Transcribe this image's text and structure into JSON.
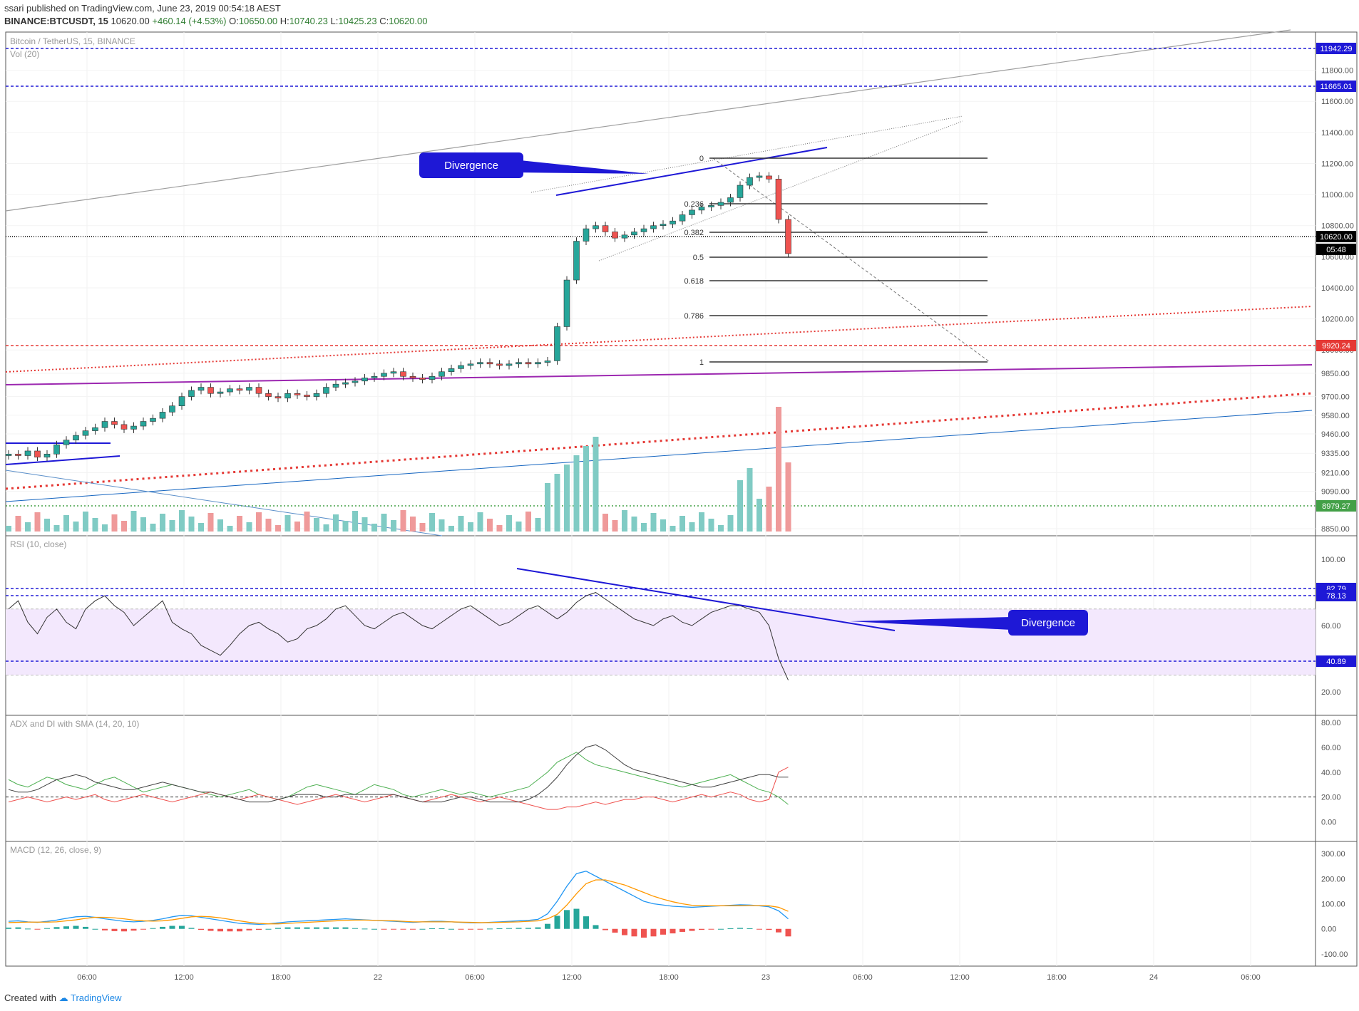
{
  "header": {
    "publisher": "ssari published on TradingView.com, June 23, 2019 00:54:18 AEST",
    "symbol": "BINANCE:BTCUSDT, 15",
    "last": "10620.00",
    "change": "+460.14 (+4.53%)",
    "o_label": "O:",
    "o": "10650.00",
    "h_label": "H:",
    "h": "10740.23",
    "l_label": "L:",
    "l": "10425.23",
    "c_label": "C:",
    "c": "10620.00"
  },
  "footer": {
    "created": "Created with",
    "brand": "TradingView"
  },
  "colors": {
    "up": "#26a69a",
    "down": "#ef5350",
    "vol_up": "#80cbc4",
    "vol_down": "#ef9a9a",
    "rsi_band": "#f3e8fd",
    "purple": "#9c27b0",
    "blue": "#1e18d6"
  },
  "chart_data": [
    {
      "type": "candlestick",
      "title": "Bitcoin / TetherUS, 15, BINANCE",
      "legend": [
        "Vol (20)"
      ],
      "ylim": [
        8850,
        12000
      ],
      "y_ticks": [
        "11800.00",
        "11600.00",
        "11400.00",
        "11200.00",
        "11000.00",
        "10800.00",
        "10600.00",
        "10400.00",
        "10200.00",
        "10000.00",
        "9850.00",
        "9700.00",
        "9580.00",
        "9460.00",
        "9335.00",
        "9210.00",
        "9090.00",
        "8850.00"
      ],
      "x_ticks": [
        "06:00",
        "12:00",
        "18:00",
        "22",
        "06:00",
        "12:00",
        "18:00",
        "23",
        "06:00",
        "12:00",
        "18:00",
        "24",
        "06:00"
      ],
      "price_labels": [
        {
          "value": "11942.29",
          "color": "#1e18d6"
        },
        {
          "value": "11665.01",
          "color": "#1e18d6"
        },
        {
          "value": "10620.00",
          "color": "#000000"
        },
        {
          "value": "05:48",
          "color": "#000000"
        },
        {
          "value": "9920.24",
          "color": "#e53935"
        },
        {
          "value": "8979.27",
          "color": "#43a047"
        }
      ],
      "fib_levels": [
        {
          "label": "0",
          "value": 11160
        },
        {
          "label": "0.236",
          "value": 10840
        },
        {
          "label": "0.382",
          "value": 10640
        },
        {
          "label": "0.5",
          "value": 10480
        },
        {
          "label": "0.618",
          "value": 10320
        },
        {
          "label": "0.786",
          "value": 10090
        },
        {
          "label": "1",
          "value": 9820
        }
      ],
      "annotation": "Divergence",
      "close_path": [
        9330,
        9320,
        9350,
        9310,
        9330,
        9390,
        9420,
        9450,
        9480,
        9500,
        9540,
        9520,
        9490,
        9510,
        9540,
        9560,
        9600,
        9640,
        9700,
        9740,
        9760,
        9720,
        9730,
        9750,
        9740,
        9760,
        9720,
        9700,
        9690,
        9720,
        9710,
        9700,
        9720,
        9760,
        9780,
        9790,
        9800,
        9820,
        9830,
        9850,
        9860,
        9830,
        9820,
        9810,
        9830,
        9860,
        9880,
        9900,
        9910,
        9920,
        9910,
        9900,
        9910,
        9920,
        9910,
        9920,
        9930,
        10150,
        10450,
        10700,
        10780,
        10800,
        10760,
        10720,
        10740,
        10760,
        10780,
        10800,
        10810,
        10830,
        10870,
        10900,
        10920,
        10930,
        10950,
        10980,
        11060,
        11110,
        11120,
        11100,
        10840,
        10620
      ]
    },
    {
      "type": "line",
      "title": "RSI (10, close)",
      "ylim": [
        10,
        110
      ],
      "y_ticks": [
        "100.00",
        "80.00",
        "60.00",
        "40.00",
        "20.00"
      ],
      "price_labels": [
        {
          "value": "82.79",
          "color": "#1e18d6"
        },
        {
          "value": "78.13",
          "color": "#1e18d6"
        },
        {
          "value": "40.89",
          "color": "#1e18d6"
        }
      ],
      "band": [
        30,
        70
      ],
      "annotation": "Divergence",
      "values": [
        70,
        75,
        62,
        55,
        65,
        70,
        62,
        58,
        70,
        75,
        78,
        72,
        68,
        60,
        65,
        70,
        75,
        62,
        58,
        55,
        48,
        45,
        42,
        48,
        55,
        60,
        62,
        58,
        55,
        50,
        52,
        58,
        60,
        64,
        70,
        72,
        66,
        60,
        58,
        62,
        66,
        68,
        64,
        60,
        58,
        62,
        66,
        70,
        72,
        68,
        64,
        60,
        62,
        66,
        70,
        72,
        68,
        64,
        68,
        74,
        78,
        80,
        76,
        72,
        68,
        64,
        62,
        60,
        64,
        66,
        62,
        60,
        64,
        68,
        70,
        72,
        72,
        70,
        68,
        60,
        40,
        27
      ]
    },
    {
      "type": "line",
      "title": "ADX and DI with SMA (14, 20, 10)",
      "ylim": [
        -10,
        80
      ],
      "y_ticks": [
        "80.00",
        "60.00",
        "40.00",
        "20.00",
        "0.00"
      ],
      "series": [
        {
          "color": "#4caf50",
          "values": [
            34,
            30,
            28,
            32,
            36,
            34,
            30,
            28,
            26,
            30,
            34,
            36,
            32,
            28,
            24,
            26,
            28,
            30,
            28,
            26,
            24,
            22,
            20,
            22,
            24,
            26,
            22,
            20,
            18,
            20,
            24,
            28,
            30,
            28,
            26,
            24,
            22,
            26,
            30,
            28,
            26,
            22,
            20,
            22,
            24,
            26,
            24,
            22,
            24,
            22,
            20,
            22,
            24,
            26,
            28,
            34,
            40,
            48,
            52,
            56,
            50,
            46,
            44,
            42,
            40,
            38,
            36,
            34,
            32,
            30,
            28,
            30,
            32,
            34,
            36,
            38,
            34,
            30,
            26,
            24,
            20,
            14
          ]
        },
        {
          "color": "#ef5350",
          "values": [
            16,
            18,
            20,
            18,
            16,
            18,
            20,
            18,
            20,
            22,
            18,
            16,
            18,
            20,
            22,
            20,
            18,
            16,
            18,
            20,
            22,
            24,
            22,
            20,
            18,
            20,
            22,
            20,
            18,
            16,
            14,
            16,
            18,
            20,
            22,
            20,
            18,
            16,
            18,
            20,
            22,
            20,
            18,
            16,
            18,
            20,
            22,
            20,
            18,
            16,
            18,
            20,
            18,
            16,
            14,
            12,
            10,
            10,
            12,
            12,
            14,
            16,
            14,
            16,
            18,
            18,
            20,
            20,
            18,
            16,
            18,
            20,
            22,
            20,
            22,
            24,
            22,
            18,
            16,
            18,
            40,
            44
          ]
        },
        {
          "color": "#424242",
          "values": [
            26,
            24,
            24,
            26,
            30,
            34,
            36,
            38,
            36,
            32,
            30,
            28,
            26,
            26,
            28,
            30,
            32,
            30,
            28,
            26,
            24,
            24,
            22,
            20,
            18,
            16,
            16,
            16,
            18,
            20,
            22,
            22,
            22,
            20,
            20,
            22,
            22,
            22,
            22,
            22,
            22,
            20,
            18,
            16,
            16,
            16,
            18,
            20,
            20,
            18,
            16,
            16,
            16,
            16,
            18,
            22,
            28,
            36,
            46,
            54,
            60,
            62,
            58,
            52,
            46,
            42,
            40,
            38,
            36,
            34,
            32,
            30,
            28,
            28,
            30,
            32,
            34,
            36,
            38,
            38,
            36,
            36
          ]
        }
      ]
    },
    {
      "type": "bar",
      "title": "MACD (12, 26, close, 9)",
      "ylim": [
        -120,
        320
      ],
      "y_ticks": [
        "300.00",
        "200.00",
        "100.00",
        "0.00",
        "-100.00"
      ],
      "series": [
        {
          "name": "MACD",
          "color": "#2196f3",
          "values": [
            30,
            32,
            28,
            26,
            30,
            35,
            42,
            48,
            50,
            46,
            40,
            35,
            30,
            28,
            30,
            34,
            40,
            48,
            54,
            52,
            46,
            40,
            34,
            28,
            22,
            20,
            18,
            20,
            24,
            28,
            30,
            32,
            34,
            36,
            38,
            40,
            38,
            36,
            34,
            32,
            30,
            28,
            26,
            28,
            30,
            30,
            28,
            26,
            24,
            24,
            26,
            28,
            30,
            32,
            34,
            38,
            60,
            110,
            170,
            220,
            230,
            210,
            190,
            170,
            150,
            130,
            110,
            100,
            95,
            90,
            88,
            86,
            88,
            90,
            92,
            94,
            96,
            95,
            92,
            88,
            72,
            40
          ]
        },
        {
          "name": "Signal",
          "color": "#ff9800",
          "values": [
            25,
            26,
            27,
            27,
            27,
            28,
            32,
            36,
            42,
            46,
            46,
            44,
            40,
            35,
            32,
            31,
            32,
            36,
            42,
            48,
            50,
            48,
            44,
            38,
            32,
            26,
            22,
            20,
            20,
            22,
            24,
            26,
            28,
            30,
            32,
            34,
            35,
            35,
            34,
            33,
            32,
            30,
            28,
            28,
            28,
            28,
            28,
            27,
            26,
            25,
            25,
            26,
            27,
            28,
            30,
            32,
            40,
            58,
            95,
            140,
            180,
            195,
            195,
            185,
            175,
            160,
            145,
            130,
            118,
            108,
            100,
            94,
            92,
            92,
            92,
            92,
            92,
            93,
            93,
            92,
            86,
            70
          ]
        },
        {
          "name": "Histogram",
          "values": [
            5,
            6,
            1,
            -1,
            3,
            7,
            10,
            12,
            8,
            0,
            -6,
            -9,
            -10,
            -7,
            -2,
            3,
            8,
            12,
            12,
            4,
            -4,
            -8,
            -10,
            -10,
            -10,
            -6,
            -4,
            0,
            4,
            6,
            6,
            6,
            6,
            6,
            6,
            6,
            3,
            1,
            0,
            -1,
            -2,
            -2,
            -2,
            0,
            2,
            2,
            0,
            -1,
            -2,
            -1,
            1,
            2,
            3,
            4,
            4,
            6,
            20,
            52,
            75,
            80,
            50,
            15,
            -5,
            -15,
            -25,
            -30,
            -35,
            -30,
            -23,
            -18,
            -12,
            -8,
            -4,
            -2,
            0,
            2,
            4,
            2,
            -1,
            -4,
            -14,
            -30
          ]
        }
      ]
    }
  ]
}
